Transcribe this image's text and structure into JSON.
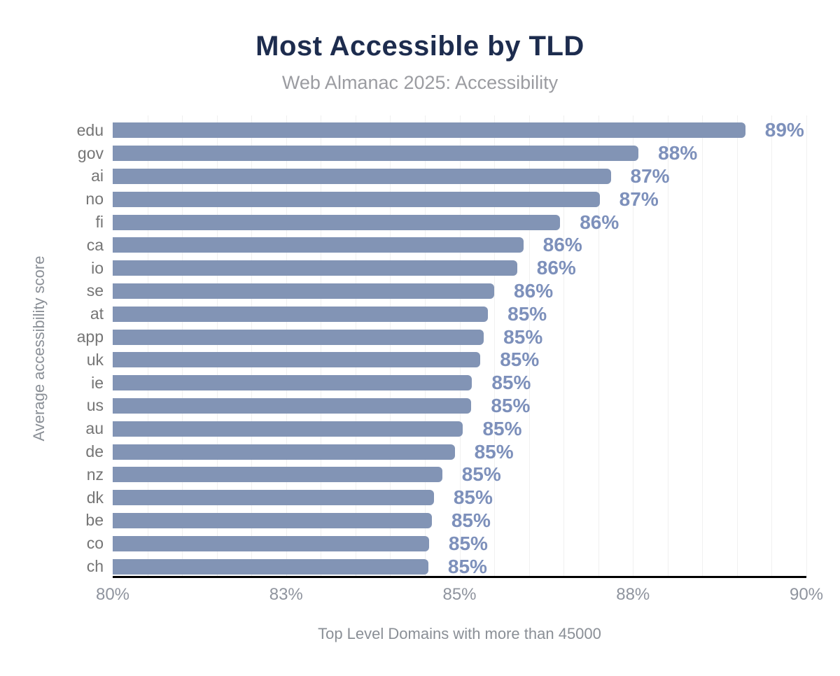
{
  "title": "Most Accessible by TLD",
  "subtitle": "Web Almanac 2025: Accessibility",
  "chart_data": {
    "type": "bar",
    "orientation": "horizontal",
    "title": "Most Accessible by TLD",
    "subtitle": "Web Almanac 2025: Accessibility",
    "xlabel": "Top Level Domains with more than 45000",
    "ylabel": "Average accessibility score",
    "xlim": [
      80,
      90
    ],
    "x_ticks": [
      {
        "value": 80,
        "label": "80%"
      },
      {
        "value": 82.5,
        "label": "83%"
      },
      {
        "value": 85,
        "label": "85%"
      },
      {
        "value": 87.5,
        "label": "88%"
      },
      {
        "value": 90,
        "label": "90%"
      }
    ],
    "minor_gridline_step": 0.5,
    "grid": "vertical-minor",
    "legend": false,
    "categories": [
      "edu",
      "gov",
      "ai",
      "no",
      "fi",
      "ca",
      "io",
      "se",
      "at",
      "app",
      "uk",
      "ie",
      "us",
      "au",
      "de",
      "nz",
      "dk",
      "be",
      "co",
      "ch"
    ],
    "values": [
      89.12,
      87.58,
      87.18,
      87.02,
      86.45,
      85.92,
      85.83,
      85.5,
      85.41,
      85.35,
      85.3,
      85.18,
      85.17,
      85.05,
      84.93,
      84.75,
      84.63,
      84.6,
      84.56,
      84.55
    ],
    "value_labels": [
      "89%",
      "88%",
      "87%",
      "87%",
      "86%",
      "86%",
      "86%",
      "86%",
      "85%",
      "85%",
      "85%",
      "85%",
      "85%",
      "85%",
      "85%",
      "85%",
      "85%",
      "85%",
      "85%",
      "85%"
    ]
  },
  "colors": {
    "bar": "#8294b5",
    "value_label": "#7d90bb",
    "title": "#1d2c4e",
    "subtitle": "#9b9ca1",
    "category_label": "#757575",
    "tick_label": "#8f949e",
    "axis_title": "#8a8f96",
    "axis_line": "#000000",
    "gridline": "#f0f0f0"
  }
}
